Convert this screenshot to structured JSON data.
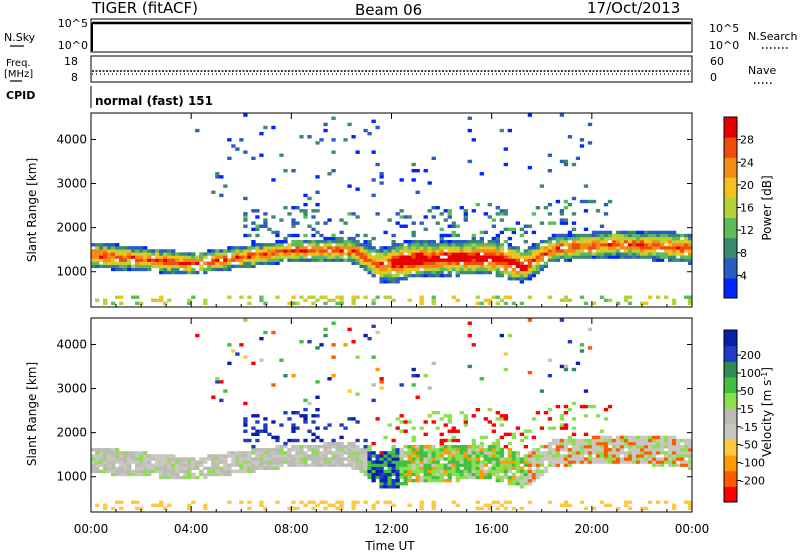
{
  "header": {
    "title": "TIGER (fitACF)",
    "beam": "Beam 06",
    "date": "17/Oct/2013"
  },
  "panels": {
    "nsky": {
      "label": "N.Sky",
      "ticks_left": [
        "10^5",
        "10^0"
      ],
      "ticks_right": [
        "10^5",
        "10^0"
      ],
      "right_label": "N.Search"
    },
    "freq": {
      "label_line1": "Freq.",
      "label_line2": "[MHz]",
      "ticks_left": [
        "18",
        "8"
      ],
      "ticks_right": [
        "60",
        "0"
      ],
      "right_label": "Nave"
    },
    "cpid": {
      "label": "CPID",
      "value": "normal (fast) 151"
    }
  },
  "colors": {
    "power": [
      "#0026ff",
      "#2a5cc4",
      "#3a8a70",
      "#5cbc5c",
      "#b5d23b",
      "#f3c21c",
      "#f58a14",
      "#f04a0e",
      "#e60000"
    ],
    "velocity": [
      "#ff0000",
      "#ff5a00",
      "#ff9a00",
      "#ffc840",
      "#c8c8c0",
      "#bcbcb4",
      "#8ce050",
      "#40c040",
      "#2e8b57",
      "#1e3cc8",
      "#0a1eaa"
    ]
  },
  "chart_data": [
    {
      "type": "heatmap",
      "title": "Power",
      "ylabel": "Slant Range [km]",
      "xlabel": "Time UT",
      "x_ticks": [
        "00:00",
        "04:00",
        "08:00",
        "12:00",
        "16:00",
        "20:00",
        "00:00"
      ],
      "y_ticks": [
        "1000",
        "2000",
        "3000",
        "4000"
      ],
      "ylim": [
        200,
        4600
      ],
      "colorbar_label": "Power [dB]",
      "colorbar_ticks": [
        "4",
        "8",
        "12",
        "16",
        "20",
        "24",
        "28"
      ],
      "colorbar_range": [
        0,
        32
      ]
    },
    {
      "type": "heatmap",
      "title": "Velocity",
      "ylabel": "Slant Range [km]",
      "xlabel": "Time UT",
      "x_ticks": [
        "00:00",
        "04:00",
        "08:00",
        "12:00",
        "16:00",
        "20:00",
        "00:00"
      ],
      "y_ticks": [
        "1000",
        "2000",
        "3000",
        "4000"
      ],
      "ylim": [
        200,
        4600
      ],
      "colorbar_label": "Velocity [m s-1]",
      "colorbar_ticks": [
        "200",
        "100",
        "50",
        "15",
        "-15",
        "-50",
        "-100",
        "-200"
      ]
    }
  ]
}
